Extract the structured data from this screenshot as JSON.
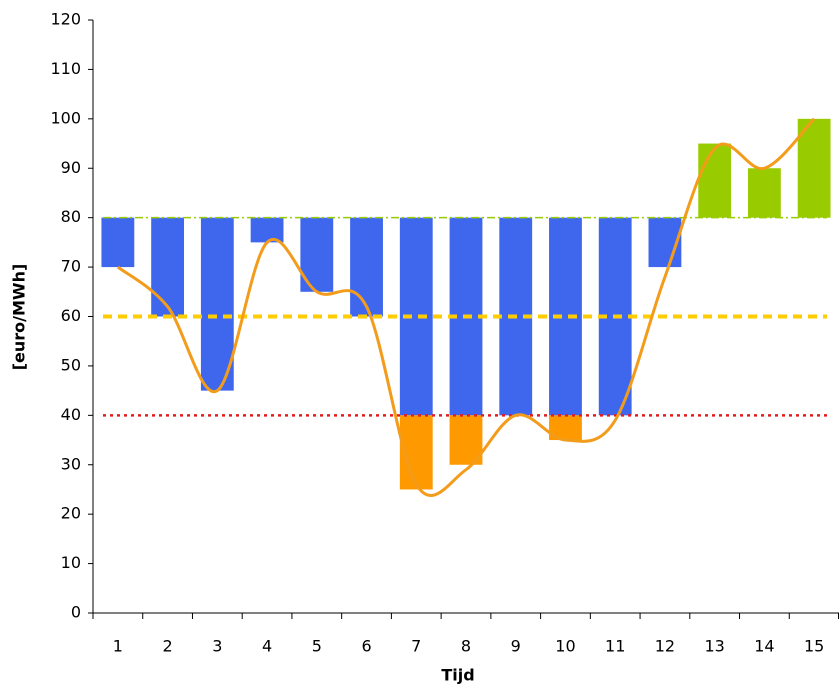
{
  "chart_data": {
    "type": "floating-bar",
    "x_label": "Tijd",
    "y_label": "[euro/MWh]",
    "categories": [
      "1",
      "2",
      "3",
      "4",
      "5",
      "6",
      "7",
      "8",
      "9",
      "10",
      "11",
      "12",
      "13",
      "14",
      "15"
    ],
    "ylim": [
      0,
      120
    ],
    "yticks": [
      0,
      10,
      20,
      30,
      40,
      50,
      60,
      70,
      80,
      90,
      100,
      110,
      120
    ],
    "series": [
      {
        "color": "#3f67ee",
        "base": 80,
        "values": [
          70,
          60,
          45,
          75,
          65,
          60,
          40,
          40,
          40,
          40,
          40,
          70,
          null,
          null,
          null
        ]
      },
      {
        "color": "#ff9900",
        "base": 40,
        "values": [
          null,
          null,
          null,
          null,
          null,
          null,
          25,
          30,
          null,
          35,
          null,
          null,
          null,
          null,
          null
        ]
      },
      {
        "color": "#99cc00",
        "base": 80,
        "values": [
          null,
          null,
          null,
          null,
          null,
          null,
          null,
          null,
          null,
          null,
          null,
          null,
          95,
          90,
          100
        ]
      }
    ],
    "reference_lines": [
      {
        "value": 80,
        "color": "#99cc00",
        "dash": "8 3 2 3",
        "width": 1.5
      },
      {
        "value": 60,
        "color": "#ffcc00",
        "dash": "9 6",
        "width": 4
      },
      {
        "value": 40,
        "color": "#e02020",
        "dash": "3 4",
        "width": 2.5
      }
    ],
    "line": {
      "color": "#f39c1b",
      "values": [
        70,
        62,
        45,
        75,
        65,
        62,
        26,
        29,
        40,
        35,
        39,
        68,
        94,
        90,
        100
      ]
    }
  }
}
